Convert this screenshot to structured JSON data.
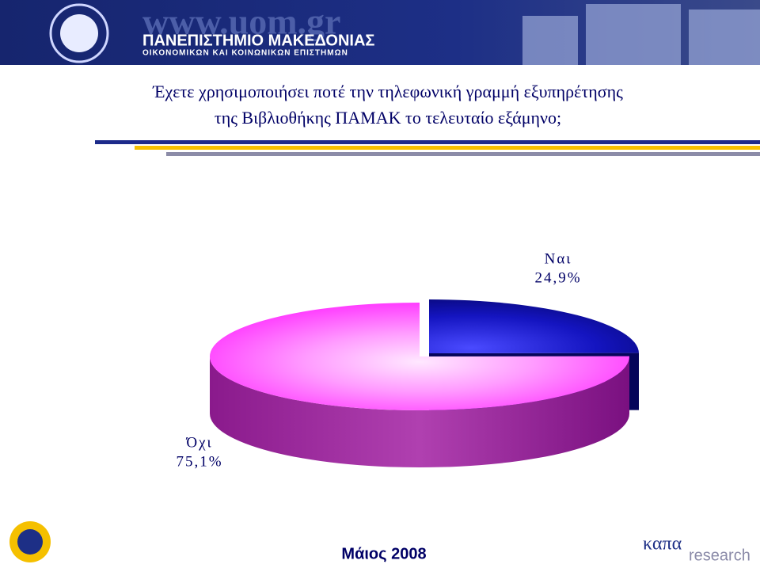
{
  "header": {
    "url": "www.uom.gr",
    "name": "ΠΑΝΕΠΙΣΤΗΜΙΟ ΜΑΚΕΔΟΝΙΑΣ",
    "subtitle": "ΟΙΚΟΝΟΜΙΚΩΝ ΚΑΙ ΚΟΙΝΩΝΙΚΩΝ ΕΠΙΣΤΗΜΩΝ"
  },
  "chart_data": {
    "type": "pie",
    "title": [
      "Έχετε χρησιμοποιήσει ποτέ την τηλεφωνική γραμμή εξυπηρέτησης",
      "της Βιβλιοθήκης ΠΑΜΑΚ το τελευταίο εξάμηνο;"
    ],
    "categories": [
      "Ναι",
      "Όχι"
    ],
    "values": [
      24.9,
      75.1
    ],
    "value_labels": [
      "24,9%",
      "75,1%"
    ],
    "colors": [
      "#1414b4",
      "#ff3cff"
    ]
  },
  "footer": {
    "date": "Μάιος 2008",
    "brand": "καπα",
    "brand_sub": "research"
  }
}
